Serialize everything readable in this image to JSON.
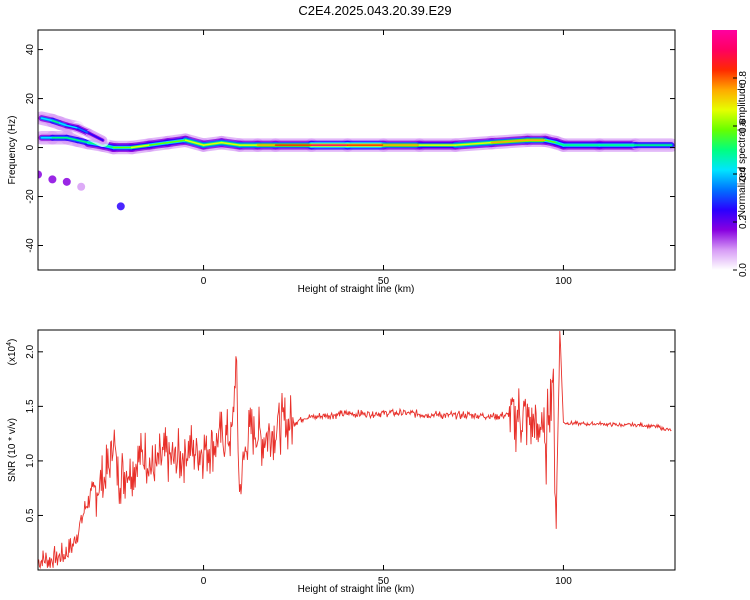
{
  "title": "C2E4.2025.043.20.39.E29",
  "chart_data": [
    {
      "type": "heatmap",
      "xlabel": "Height of straight line (km)",
      "ylabel": "Frequency (Hz)",
      "xlim": [
        -46,
        131
      ],
      "ylim": [
        -50,
        48
      ],
      "xticks": [
        "0",
        "50",
        "100"
      ],
      "yticks": [
        "40",
        "20",
        "0",
        "-20",
        "-40"
      ],
      "colorbar": {
        "label": "Normalized spectral amplitude",
        "range": [
          0,
          1
        ],
        "ticks": [
          "0.0",
          "0.2",
          "0.4",
          "0.6",
          "0.8"
        ],
        "colormap": [
          "#ffffff",
          "#d79cf6",
          "#8800e0",
          "#2a00ff",
          "#0070ff",
          "#00e5ff",
          "#00ff80",
          "#66ff00",
          "#e6ff00",
          "#ffaa00",
          "#ff2a00",
          "#ff0060",
          "#ff00a0"
        ]
      },
      "ridge": {
        "x": [
          -45,
          -42,
          -38,
          -35,
          -32,
          -28,
          -25,
          -20,
          -15,
          -10,
          -5,
          0,
          5,
          10,
          15,
          20,
          30,
          40,
          50,
          60,
          70,
          80,
          90,
          95,
          98,
          100,
          110,
          120,
          130
        ],
        "y": [
          4,
          4,
          4,
          3,
          2,
          1,
          0,
          0,
          1,
          2,
          3,
          1,
          2,
          1,
          1,
          1,
          1,
          1,
          1,
          1,
          1,
          2,
          3,
          3,
          2,
          1,
          1,
          1,
          1
        ],
        "amplitude": [
          0.4,
          0.45,
          0.5,
          0.45,
          0.5,
          0.55,
          0.5,
          0.6,
          0.65,
          0.55,
          0.6,
          0.7,
          0.6,
          0.7,
          0.7,
          0.8,
          0.85,
          0.9,
          0.8,
          0.65,
          0.6,
          0.75,
          0.8,
          0.7,
          0.5,
          0.5,
          0.55,
          0.5,
          0.45
        ]
      },
      "upper_branch": {
        "x": [
          -45,
          -42,
          -40,
          -38,
          -35,
          -32,
          -28
        ],
        "y": [
          12,
          11,
          10,
          9,
          8,
          6,
          3
        ],
        "amplitude": [
          0.35,
          0.5,
          0.45,
          0.4,
          0.35,
          0.3,
          0.25
        ]
      },
      "scattered": [
        {
          "x": -46,
          "y": -11,
          "amplitude": 0.15
        },
        {
          "x": -42,
          "y": -13,
          "amplitude": 0.2
        },
        {
          "x": -38,
          "y": -14,
          "amplitude": 0.15
        },
        {
          "x": -34,
          "y": -16,
          "amplitude": 0.08
        },
        {
          "x": -23,
          "y": -24,
          "amplitude": 0.25
        }
      ]
    },
    {
      "type": "line",
      "xlabel": "Height of straight line (km)",
      "ylabel": "SNR (10 * v/v)",
      "y_multiplier": "(x10",
      "y_multiplier_exp": "4",
      "y_multiplier_close": ")",
      "xlim": [
        -46,
        131
      ],
      "ylim": [
        0,
        2.2
      ],
      "xticks": [
        "0",
        "50",
        "100"
      ],
      "yticks": [
        "0.5",
        "1.0",
        "1.5",
        "2.0"
      ],
      "series": [
        {
          "color": "#e8302a",
          "x": [
            -46,
            -42,
            -38,
            -36,
            -34,
            -32,
            -30,
            -28,
            -26,
            -25,
            -24,
            -22,
            -20,
            -18,
            -16,
            -14,
            -12,
            -10,
            -8,
            -6,
            -4,
            -2,
            0,
            2,
            4,
            6,
            8,
            9,
            10,
            12,
            14,
            16,
            18,
            20,
            22,
            25,
            28,
            30,
            35,
            40,
            45,
            50,
            55,
            60,
            65,
            70,
            75,
            80,
            85,
            88,
            90,
            92,
            93,
            94,
            95,
            96,
            97,
            98,
            99,
            100,
            105,
            110,
            115,
            120,
            125,
            130
          ],
          "y": [
            0.08,
            0.1,
            0.15,
            0.25,
            0.45,
            0.65,
            0.75,
            0.8,
            0.95,
            1.25,
            0.85,
            0.9,
            0.95,
            1.0,
            1.05,
            0.9,
            1.0,
            1.05,
            1.0,
            1.05,
            1.1,
            1.1,
            1.1,
            1.15,
            1.2,
            1.2,
            1.25,
            1.9,
            0.7,
            1.2,
            1.3,
            1.2,
            1.25,
            1.3,
            1.35,
            1.35,
            1.4,
            1.4,
            1.42,
            1.43,
            1.43,
            1.44,
            1.44,
            1.43,
            1.42,
            1.42,
            1.42,
            1.41,
            1.42,
            1.41,
            1.4,
            1.35,
            1.2,
            1.45,
            1.0,
            1.55,
            1.8,
            0.45,
            2.2,
            1.35,
            1.34,
            1.34,
            1.33,
            1.33,
            1.32,
            1.28
          ]
        }
      ]
    }
  ]
}
